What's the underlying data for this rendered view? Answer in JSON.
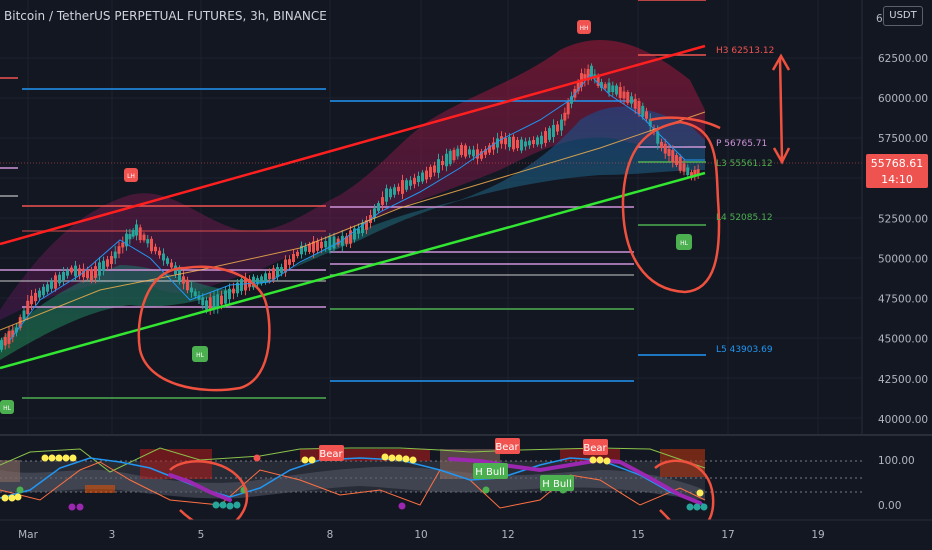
{
  "chart_data": {
    "type": "line",
    "title": "Bitcoin / TetherUS PERPETUAL FUTURES, 3h, BINANCE",
    "currency": "USDT",
    "price_axis": {
      "ticks": [
        "62500.00",
        "60000.00",
        "57500.00",
        "55000.00",
        "52500.00",
        "50000.00",
        "47500.00",
        "45000.00",
        "42500.00",
        "40000.00"
      ],
      "ylim": [
        39000,
        64000
      ]
    },
    "last_price": {
      "value": "55768.61",
      "countdown": "14:10",
      "value_num": 55768.61
    },
    "x_axis": {
      "ticks": [
        "Mar",
        "3",
        "5",
        "8",
        "10",
        "12",
        "15",
        "17",
        "19"
      ]
    },
    "pivot_labels": [
      {
        "text": "H3 62513.12",
        "value": 62513.12,
        "color": "#f05350"
      },
      {
        "text": "P 56765.71",
        "value": 56765.71,
        "color": "#ce93d8"
      },
      {
        "text": "L3 55561.12",
        "value": 55561.12,
        "color": "#4caf50"
      },
      {
        "text": "L4 52085.12",
        "value": 52085.12,
        "color": "#4caf50"
      },
      {
        "text": "L5 43903.69",
        "value": 43903.69,
        "color": "#2196f3"
      }
    ],
    "swing_markers": [
      {
        "text": "HH",
        "color": "#f05350"
      },
      {
        "text": "LH",
        "color": "#f05350"
      },
      {
        "text": "HL",
        "color": "#4caf50"
      },
      {
        "text": "HL",
        "color": "#4caf50"
      },
      {
        "text": "HL",
        "color": "#4caf50"
      }
    ],
    "oscillator": {
      "ticks": [
        "100.00",
        "0.00"
      ],
      "ylim": [
        -20,
        130
      ],
      "labels": [
        {
          "text": "Bear",
          "color": "#f05350"
        },
        {
          "text": "Bear",
          "color": "#f05350"
        },
        {
          "text": "Bear",
          "color": "#f05350"
        },
        {
          "text": "H Bull",
          "color": "#4caf50"
        },
        {
          "text": "H Bull",
          "color": "#4caf50"
        }
      ]
    },
    "colors": {
      "background": "#131722",
      "up": "#26a69a",
      "down": "#ef5350",
      "upper_trend": "#ff1f1f",
      "lower_trend": "#32e632",
      "annotation": "#f0513f"
    }
  }
}
